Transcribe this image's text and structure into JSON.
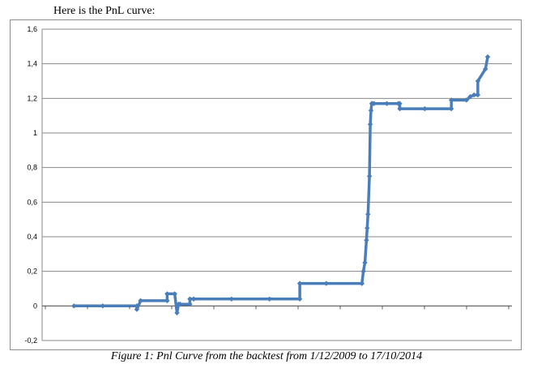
{
  "intro_text": "Here is the PnL curve:",
  "caption": "Figure 1: Pnl Curve from the backtest from 1/12/2009 to 17/10/2014",
  "chart_data": {
    "type": "line",
    "ylim": [
      -0.2,
      1.6
    ],
    "yticks": [
      -0.2,
      0,
      0.2,
      0.4,
      0.6,
      0.8,
      1,
      1.2,
      1.4,
      1.6
    ],
    "ytick_labels": [
      "-0,2",
      "0",
      "0,2",
      "0,4",
      "0,6",
      "0,8",
      "1",
      "1,2",
      "1,4",
      "1,6"
    ],
    "grid": true,
    "line_color": "#4a7ebb",
    "xtick_labels": [
      "",
      "",
      "",
      "",
      "",
      "",
      "",
      "",
      "",
      "",
      "",
      ""
    ],
    "series": [
      {
        "x": [
          2009.92,
          2010.3,
          2010.75,
          2010.75,
          2010.8,
          2010.8,
          2011.15,
          2011.15,
          2011.25,
          2011.28,
          2011.3,
          2011.32,
          2011.32,
          2011.45,
          2011.45,
          2011.5,
          2011.5,
          2012.0,
          2012.5,
          2012.9,
          2012.9,
          2013.25,
          2013.72,
          2013.72,
          2013.74,
          2013.76,
          2013.78,
          2013.79,
          2013.8,
          2013.82,
          2013.83,
          2013.84,
          2013.85,
          2013.86,
          2013.88,
          2014.05,
          2014.2,
          2014.22,
          2014.22,
          2014.55,
          2014.9,
          2014.9,
          2015.1,
          2015.15,
          2015.2,
          2015.25,
          2015.25,
          2015.35,
          2015.38
        ],
        "y": [
          0,
          0,
          0,
          -0.02,
          0.03,
          0.03,
          0.03,
          0.07,
          0.07,
          -0.04,
          0.01,
          0.01,
          0.01,
          0.01,
          0.04,
          0.04,
          0.04,
          0.04,
          0.04,
          0.04,
          0.13,
          0.13,
          0.13,
          0.13,
          0.2,
          0.25,
          0.38,
          0.45,
          0.53,
          0.75,
          1.05,
          1.13,
          1.17,
          1.17,
          1.17,
          1.17,
          1.17,
          1.17,
          1.14,
          1.14,
          1.14,
          1.19,
          1.19,
          1.21,
          1.22,
          1.22,
          1.3,
          1.37,
          1.44
        ]
      }
    ]
  }
}
